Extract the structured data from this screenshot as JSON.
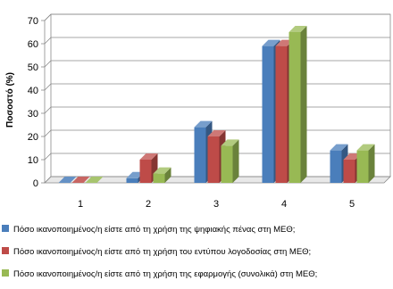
{
  "chart_data": {
    "type": "bar",
    "title": "",
    "xlabel": "",
    "ylabel": "Ποσοστό (%)",
    "ylim": [
      0,
      70
    ],
    "yticks": [
      0,
      10,
      20,
      30,
      40,
      50,
      60,
      70
    ],
    "categories": [
      "1",
      "2",
      "3",
      "4",
      "5"
    ],
    "grid": true,
    "three_d": true,
    "legend_position": "bottom",
    "series": [
      {
        "name": "Πόσο ικανοποιημένος/η  είστε από τη χρήση της ψηφιακής πένας στη ΜΕΘ;",
        "color": "#4a7ebb",
        "values": [
          0,
          2,
          24,
          59,
          14
        ]
      },
      {
        "name": "Πόσο ικανοποιημένος/η  είστε από τη χρήση του εντύπου λογοδοσίας στη ΜΕΘ;",
        "color": "#be4b48",
        "values": [
          0,
          10,
          20,
          59,
          10
        ]
      },
      {
        "name": "Πόσο ικανοποιημένος/η  είστε από τη χρήση της εφαρμογής (συνολικά) στη ΜΕΘ;",
        "color": "#98b954",
        "values": [
          0,
          4,
          16,
          65,
          14
        ]
      }
    ]
  }
}
